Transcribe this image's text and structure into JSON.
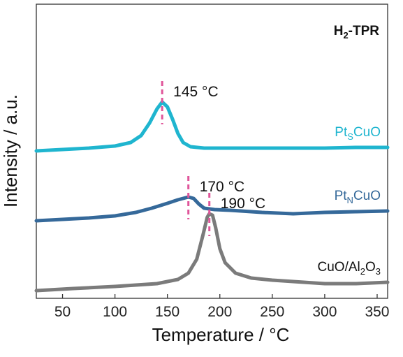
{
  "chart_data": {
    "type": "line",
    "title": "",
    "badge": {
      "main": "H",
      "sub": "2",
      "rest": "-TPR"
    },
    "xlabel": "Temperature / °C",
    "ylabel": "Intensity / a.u.",
    "xlim": [
      25,
      360
    ],
    "x_ticks": [
      50,
      100,
      150,
      200,
      250,
      300,
      350
    ],
    "y_ticks_labeled": false,
    "grid": false,
    "legend": "inline labels at right of each trace",
    "series": [
      {
        "name": "PtSCuO",
        "label_parts": {
          "main": "Pt",
          "sub": "S",
          "rest": "CuO"
        },
        "color": "#1fb5cf",
        "offset": 2.0,
        "peak_label": "145 °C",
        "peak_x": 145,
        "points": [
          [
            25,
            0.0
          ],
          [
            50,
            0.02
          ],
          [
            75,
            0.04
          ],
          [
            100,
            0.07
          ],
          [
            115,
            0.12
          ],
          [
            125,
            0.22
          ],
          [
            133,
            0.4
          ],
          [
            140,
            0.6
          ],
          [
            145,
            0.7
          ],
          [
            150,
            0.63
          ],
          [
            155,
            0.45
          ],
          [
            160,
            0.25
          ],
          [
            165,
            0.12
          ],
          [
            172,
            0.06
          ],
          [
            185,
            0.04
          ],
          [
            210,
            0.04
          ],
          [
            250,
            0.04
          ],
          [
            300,
            0.04
          ],
          [
            330,
            0.05
          ],
          [
            360,
            0.05
          ]
        ]
      },
      {
        "name": "PtNCuO",
        "label_parts": {
          "main": "Pt",
          "sub": "N",
          "rest": "CuO"
        },
        "color": "#35699a",
        "offset": 1.0,
        "peak_label": "170 °C",
        "peak_x": 170,
        "points": [
          [
            25,
            0.0
          ],
          [
            50,
            0.02
          ],
          [
            75,
            0.04
          ],
          [
            100,
            0.07
          ],
          [
            120,
            0.12
          ],
          [
            135,
            0.18
          ],
          [
            150,
            0.25
          ],
          [
            160,
            0.3
          ],
          [
            170,
            0.34
          ],
          [
            175,
            0.32
          ],
          [
            180,
            0.24
          ],
          [
            185,
            0.18
          ],
          [
            195,
            0.16
          ],
          [
            210,
            0.15
          ],
          [
            240,
            0.12
          ],
          [
            270,
            0.1
          ],
          [
            300,
            0.12
          ],
          [
            330,
            0.13
          ],
          [
            360,
            0.14
          ]
        ]
      },
      {
        "name": "CuO/Al2O3",
        "label_parts": {
          "main": "CuO/Al",
          "sub": "2",
          "rest": "O",
          "sub2": "3"
        },
        "color": "#7b7b7b",
        "offset": 0.0,
        "peak_label": "190 °C",
        "peak_x": 190,
        "points": [
          [
            25,
            0.0
          ],
          [
            60,
            0.03
          ],
          [
            100,
            0.06
          ],
          [
            140,
            0.1
          ],
          [
            160,
            0.16
          ],
          [
            170,
            0.25
          ],
          [
            178,
            0.45
          ],
          [
            184,
            0.8
          ],
          [
            188,
            1.05
          ],
          [
            190,
            1.1
          ],
          [
            193,
            1.08
          ],
          [
            196,
            0.9
          ],
          [
            200,
            0.6
          ],
          [
            205,
            0.4
          ],
          [
            215,
            0.25
          ],
          [
            230,
            0.18
          ],
          [
            250,
            0.15
          ],
          [
            300,
            0.1
          ],
          [
            330,
            0.1
          ],
          [
            360,
            0.12
          ]
        ]
      }
    ]
  },
  "colors": {
    "peak_marker": "#e0559a",
    "axis": "#333333"
  }
}
